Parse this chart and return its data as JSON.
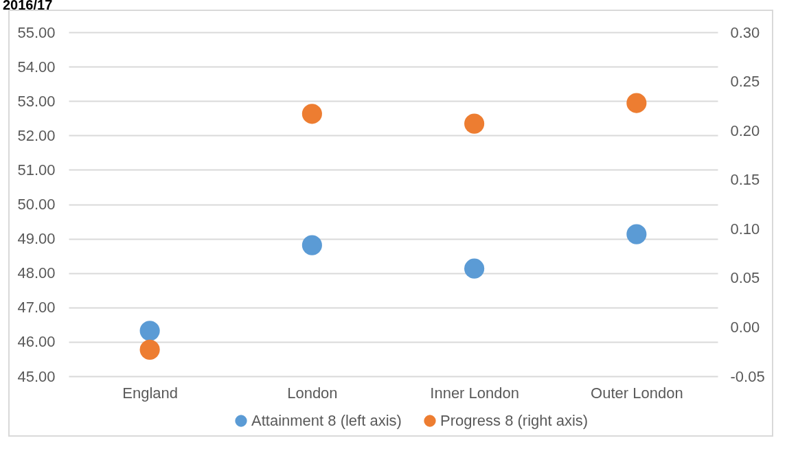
{
  "chart_data": {
    "type": "scatter",
    "title": "2016/17",
    "categories": [
      "England",
      "London",
      "Inner London",
      "Outer London"
    ],
    "series": [
      {
        "name": "Attainment 8 (left axis)",
        "color": "#5b9bd5",
        "values": [
          46.32,
          48.81,
          48.13,
          49.13
        ]
      },
      {
        "name": "Progress 8 (right axis)",
        "color": "#ed7d31",
        "values": [
          -0.023,
          0.217,
          0.207,
          0.228
        ],
        "axis": "y2"
      }
    ],
    "ylim": [
      45,
      55
    ],
    "yticks": [
      {
        "value": 45,
        "label": "45.00"
      },
      {
        "value": 46,
        "label": "46.00"
      },
      {
        "value": 47,
        "label": "47.00"
      },
      {
        "value": 48,
        "label": "48.00"
      },
      {
        "value": 49,
        "label": "49.00"
      },
      {
        "value": 50,
        "label": "50.00"
      },
      {
        "value": 51,
        "label": "51.00"
      },
      {
        "value": 52,
        "label": "52.00"
      },
      {
        "value": 53,
        "label": "53.00"
      },
      {
        "value": 54,
        "label": "54.00"
      },
      {
        "value": 55,
        "label": "55.00"
      }
    ],
    "y2lim": [
      -0.05,
      0.3
    ],
    "y2ticks": [
      {
        "value": -0.05,
        "label": "-0.05"
      },
      {
        "value": 0,
        "label": "0.00"
      },
      {
        "value": 0.05,
        "label": "0.05"
      },
      {
        "value": 0.1,
        "label": "0.10"
      },
      {
        "value": 0.15,
        "label": "0.15"
      },
      {
        "value": 0.2,
        "label": "0.20"
      },
      {
        "value": 0.25,
        "label": "0.25"
      },
      {
        "value": 0.3,
        "label": "0.30"
      }
    ],
    "grid": "y",
    "legend": "bottom",
    "marker": "circle"
  }
}
